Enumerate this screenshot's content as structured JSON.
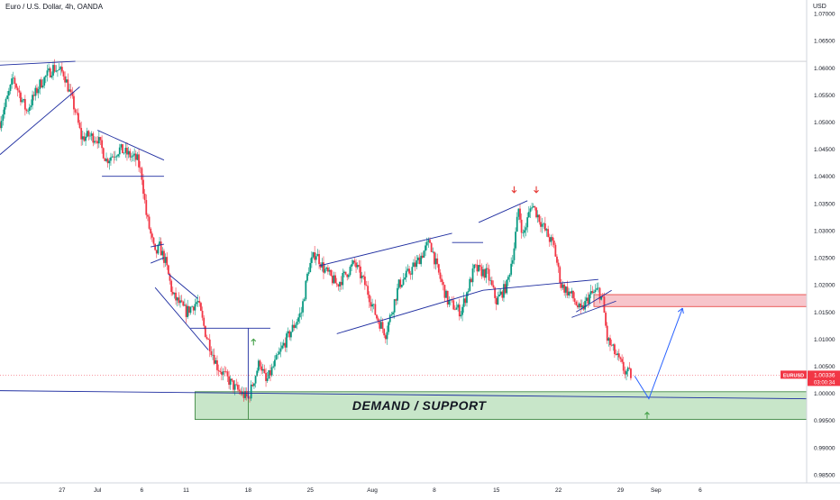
{
  "title": "Euro / U.S. Dollar, 4h, OANDA",
  "currency": "USD",
  "chart_data": {
    "type": "candlestick",
    "symbol": "EURUSD",
    "y_ticks": [
      "1.07000",
      "1.06500",
      "1.06000",
      "1.05500",
      "1.05000",
      "1.04500",
      "1.04000",
      "1.03500",
      "1.03000",
      "1.02500",
      "1.02000",
      "1.01500",
      "1.01000",
      "1.00500",
      "1.00000",
      "0.99500",
      "0.99000",
      "0.98500"
    ],
    "ylim": [
      0.9835,
      1.0725
    ],
    "x_labels": [
      "27",
      "Jul",
      "6",
      "11",
      "18",
      "25",
      "Aug",
      "8",
      "15",
      "22",
      "29",
      "Sep",
      "6"
    ],
    "x_label_days": [
      0,
      4,
      9,
      14,
      21,
      28,
      35,
      42,
      49,
      56,
      63,
      67,
      72
    ],
    "x_range_days": [
      -7,
      84
    ],
    "last_price": {
      "symbol": "EURUSD",
      "price": "1.00336",
      "countdown": "03:00:34",
      "value": 1.00336
    },
    "colors": {
      "up": "#089981",
      "down": "#f23645",
      "line": "#1e2da0",
      "demand_fill": "#c8e6c9",
      "demand_border": "#2e7d32",
      "supply_fill": "#f7c5cb",
      "supply_border": "#e53935",
      "arrow_up": "#43a047",
      "arrow_down": "#e53935",
      "projection": "#2962ff"
    },
    "key_points": [
      {
        "d": -7.0,
        "p": 1.05
      },
      {
        "d": -5.5,
        "p": 1.058
      },
      {
        "d": -4.0,
        "p": 1.052
      },
      {
        "d": -2.5,
        "p": 1.057
      },
      {
        "d": -1.0,
        "p": 1.06
      },
      {
        "d": 0.2,
        "p": 1.059
      },
      {
        "d": 1.5,
        "p": 1.052
      },
      {
        "d": 2.2,
        "p": 1.047
      },
      {
        "d": 3.0,
        "p": 1.0475
      },
      {
        "d": 4.0,
        "p": 1.047
      },
      {
        "d": 5.0,
        "p": 1.043
      },
      {
        "d": 6.5,
        "p": 1.045
      },
      {
        "d": 8.5,
        "p": 1.043
      },
      {
        "d": 9.0,
        "p": 1.04
      },
      {
        "d": 9.5,
        "p": 1.033
      },
      {
        "d": 10.5,
        "p": 1.0255
      },
      {
        "d": 11.0,
        "p": 1.027
      },
      {
        "d": 11.7,
        "p": 1.024
      },
      {
        "d": 12.5,
        "p": 1.018
      },
      {
        "d": 14.0,
        "p": 1.015
      },
      {
        "d": 15.3,
        "p": 1.017
      },
      {
        "d": 16.2,
        "p": 1.011
      },
      {
        "d": 17.5,
        "p": 1.005
      },
      {
        "d": 19.5,
        "p": 1.001
      },
      {
        "d": 21.0,
        "p": 0.999
      },
      {
        "d": 22.3,
        "p": 1.006
      },
      {
        "d": 23.0,
        "p": 1.002
      },
      {
        "d": 25.0,
        "p": 1.009
      },
      {
        "d": 26.0,
        "p": 1.012
      },
      {
        "d": 27.0,
        "p": 1.015
      },
      {
        "d": 27.8,
        "p": 1.023
      },
      {
        "d": 28.6,
        "p": 1.026
      },
      {
        "d": 29.5,
        "p": 1.023
      },
      {
        "d": 31.0,
        "p": 1.02
      },
      {
        "d": 33.0,
        "p": 1.024
      },
      {
        "d": 34.2,
        "p": 1.02
      },
      {
        "d": 35.5,
        "p": 1.014
      },
      {
        "d": 36.5,
        "p": 1.011
      },
      {
        "d": 38.0,
        "p": 1.02
      },
      {
        "d": 40.0,
        "p": 1.024
      },
      {
        "d": 41.5,
        "p": 1.028
      },
      {
        "d": 42.3,
        "p": 1.023
      },
      {
        "d": 43.5,
        "p": 1.017
      },
      {
        "d": 45.0,
        "p": 1.015
      },
      {
        "d": 46.5,
        "p": 1.023
      },
      {
        "d": 48.0,
        "p": 1.022
      },
      {
        "d": 49.0,
        "p": 1.017
      },
      {
        "d": 50.2,
        "p": 1.02
      },
      {
        "d": 51.0,
        "p": 1.027
      },
      {
        "d": 51.5,
        "p": 1.034
      },
      {
        "d": 52.0,
        "p": 1.029
      },
      {
        "d": 53.0,
        "p": 1.035
      },
      {
        "d": 54.5,
        "p": 1.03
      },
      {
        "d": 55.5,
        "p": 1.027
      },
      {
        "d": 56.3,
        "p": 1.02
      },
      {
        "d": 57.5,
        "p": 1.018
      },
      {
        "d": 58.5,
        "p": 1.015
      },
      {
        "d": 59.5,
        "p": 1.018
      },
      {
        "d": 60.5,
        "p": 1.019
      },
      {
        "d": 61.0,
        "p": 1.017
      },
      {
        "d": 61.5,
        "p": 1.01
      },
      {
        "d": 62.5,
        "p": 1.007
      },
      {
        "d": 63.5,
        "p": 1.004
      },
      {
        "d": 64.2,
        "p": 1.0034
      }
    ],
    "trend_lines": [
      {
        "d1": -7,
        "p1": 1.0605,
        "d2": 1.5,
        "p2": 1.0612
      },
      {
        "d1": -7,
        "p1": 1.044,
        "d2": 2.0,
        "p2": 1.0565
      },
      {
        "d1": 4.0,
        "p1": 1.0485,
        "d2": 11.5,
        "p2": 1.043
      },
      {
        "d1": 4.5,
        "p1": 1.04,
        "d2": 11.5,
        "p2": 1.04
      },
      {
        "d1": 10.0,
        "p1": 1.024,
        "d2": 11.5,
        "p2": 1.025
      },
      {
        "d1": 10.0,
        "p1": 1.027,
        "d2": 11.5,
        "p2": 1.0275
      },
      {
        "d1": 12.0,
        "p1": 1.022,
        "d2": 15.3,
        "p2": 1.0175
      },
      {
        "d1": 10.5,
        "p1": 1.0195,
        "d2": 16.5,
        "p2": 1.008
      },
      {
        "d1": 14.5,
        "p1": 1.012,
        "d2": 23.5,
        "p2": 1.012
      },
      {
        "d1": 21.0,
        "p1": 1.012,
        "d2": 21.0,
        "p2": 0.999
      },
      {
        "d1": 29.0,
        "p1": 1.0235,
        "d2": 44.0,
        "p2": 1.0295
      },
      {
        "d1": 31.0,
        "p1": 1.011,
        "d2": 47.5,
        "p2": 1.019
      },
      {
        "d1": 47.0,
        "p1": 1.0315,
        "d2": 52.5,
        "p2": 1.0355
      },
      {
        "d1": 44.0,
        "p1": 1.0278,
        "d2": 47.5,
        "p2": 1.0278
      },
      {
        "d1": 47.5,
        "p1": 1.019,
        "d2": 60.5,
        "p2": 1.021
      },
      {
        "d1": 58.0,
        "p1": 1.015,
        "d2": 62.0,
        "p2": 1.019
      },
      {
        "d1": 57.5,
        "p1": 1.014,
        "d2": 62.5,
        "p2": 1.017
      },
      {
        "d1": -7,
        "p1": 1.0005,
        "d2": 84,
        "p2": 0.999
      }
    ],
    "demand_zone": {
      "d1": 15.0,
      "d2": 84,
      "p_low": 0.9952,
      "p_high": 1.0003,
      "label": "DEMAND / SUPPORT",
      "divider_d": 21.0
    },
    "supply_zone": {
      "d1": 60.0,
      "d2": 84,
      "p_low": 1.016,
      "p_high": 1.0182
    },
    "projection": [
      {
        "d": 64.6,
        "p": 1.0032
      },
      {
        "d": 66.2,
        "p": 0.999
      },
      {
        "d": 70.0,
        "p": 1.0157
      }
    ],
    "arrows": [
      {
        "type": "up",
        "d": 21.6,
        "p": 1.01
      },
      {
        "type": "down",
        "d": 51.0,
        "p": 1.037
      },
      {
        "type": "down",
        "d": 53.5,
        "p": 1.037
      },
      {
        "type": "up",
        "d": 66.0,
        "p": 0.9965
      }
    ]
  }
}
